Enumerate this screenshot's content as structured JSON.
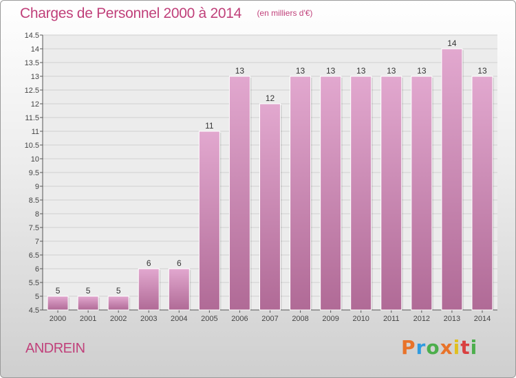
{
  "header": {
    "title": "Charges de Personnel 2000 à 2014",
    "unit": "(en milliers d'€)"
  },
  "footer": {
    "commune": "ANDREIN",
    "logo_text": "Proxiti",
    "logo_colors": [
      "#e8732a",
      "#2f9be0",
      "#4cae4c",
      "#e8732a",
      "#e0c020",
      "#d94040",
      "#4cae4c"
    ]
  },
  "colors": {
    "title": "#c0407a",
    "bar_top": "#e2a8cf",
    "bar_bottom": "#b06a96",
    "grid": "#cfcfcf",
    "plot_bg": "#ececec"
  },
  "chart_data": {
    "type": "bar",
    "categories": [
      "2000",
      "2001",
      "2002",
      "2003",
      "2004",
      "2005",
      "2006",
      "2007",
      "2008",
      "2009",
      "2010",
      "2011",
      "2012",
      "2013",
      "2014"
    ],
    "values": [
      5,
      5,
      5,
      6,
      6,
      11,
      13,
      12,
      13,
      13,
      13,
      13,
      13,
      14,
      13
    ],
    "value_labels": [
      "5",
      "5",
      "5",
      "6",
      "6",
      "11",
      "13",
      "12",
      "13",
      "13",
      "13",
      "13",
      "13",
      "14",
      "13"
    ],
    "ylim": [
      4.5,
      14.5
    ],
    "yticks": [
      "4.5",
      "5",
      "5.5",
      "6",
      "6.5",
      "7",
      "7.5",
      "8",
      "8.5",
      "9",
      "9.5",
      "10",
      "10.5",
      "11",
      "11.5",
      "12",
      "12.5",
      "13",
      "13.5",
      "14",
      "14.5"
    ],
    "grid": true,
    "title": "Charges de Personnel 2000 à 2014",
    "xlabel": "",
    "ylabel": ""
  }
}
